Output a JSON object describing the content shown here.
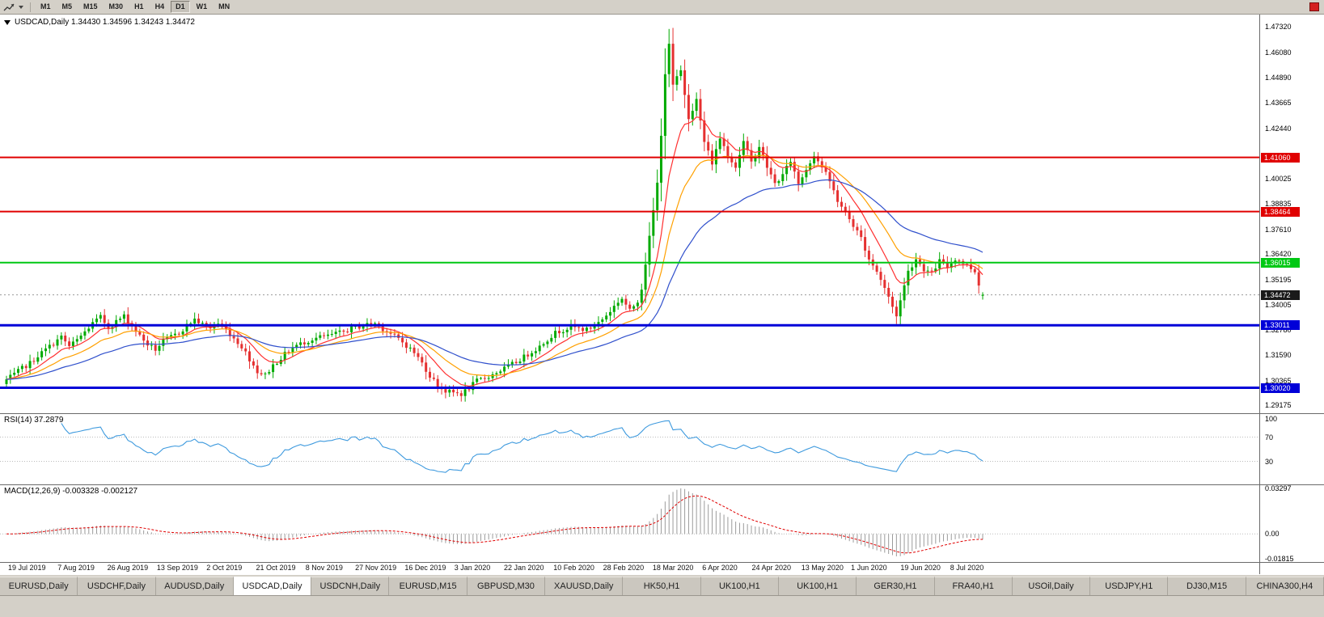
{
  "toolbar": {
    "timeframes": [
      "M1",
      "M5",
      "M15",
      "M30",
      "H1",
      "H4",
      "D1",
      "W1",
      "MN"
    ],
    "active_timeframe": "D1"
  },
  "chart": {
    "title": "USDCAD,Daily 1.34430 1.34596 1.34243 1.34472"
  },
  "chart_data": {
    "type": "candlestick",
    "symbol": "USDCAD",
    "timeframe": "Daily",
    "quote": {
      "open": "1.34430",
      "high": "1.34596",
      "low": "1.34243",
      "close": "1.34472"
    },
    "y_axis_ticks": [
      "1.47320",
      "1.46080",
      "1.44890",
      "1.43665",
      "1.42440",
      "1.40025",
      "1.38835",
      "1.37610",
      "1.36420",
      "1.35195",
      "1.34005",
      "1.32780",
      "1.31590",
      "1.30365",
      "1.29175"
    ],
    "x_tick_labels": [
      "19 Jul 2019",
      "7 Aug 2019",
      "26 Aug 2019",
      "13 Sep 2019",
      "2 Oct 2019",
      "21 Oct 2019",
      "8 Nov 2019",
      "27 Nov 2019",
      "16 Dec 2019",
      "3 Jan 2020",
      "22 Jan 2020",
      "10 Feb 2020",
      "28 Feb 2020",
      "18 Mar 2020",
      "6 Apr 2020",
      "24 Apr 2020",
      "13 May 2020",
      "1 Jun 2020",
      "19 Jun 2020",
      "8 Jul 2020"
    ],
    "price_lines": [
      {
        "label": "1.41060",
        "value": 1.4106,
        "color": "#E00000",
        "width": 2,
        "type": "resistance"
      },
      {
        "label": "1.38464",
        "value": 1.38464,
        "color": "#E00000",
        "width": 2,
        "type": "resistance"
      },
      {
        "label": "1.36015",
        "value": 1.36015,
        "color": "#00C814",
        "width": 2,
        "type": "level"
      },
      {
        "label": "1.33011",
        "value": 1.33011,
        "color": "#0000D8",
        "width": 3,
        "type": "support"
      },
      {
        "label": "1.30020",
        "value": 1.3002,
        "color": "#0000D8",
        "width": 3,
        "type": "support"
      }
    ],
    "current_price": {
      "label": "1.34472",
      "value": 1.34472
    },
    "candle_colors": {
      "up": "#00AA00",
      "down": "#E53030"
    },
    "moving_averages": [
      {
        "period": 10,
        "color": "#FF3030"
      },
      {
        "period": 21,
        "color": "#FFA000"
      },
      {
        "period": 45,
        "color": "#3050CC"
      }
    ],
    "candles_approx": {
      "count": 250,
      "last": [
        1.3443,
        1.34596,
        1.34243,
        1.34472
      ],
      "anchors": [
        [
          0,
          1.304
        ],
        [
          2,
          1.3065
        ],
        [
          4,
          1.3095
        ],
        [
          6,
          1.312
        ],
        [
          8,
          1.3155
        ],
        [
          10,
          1.3185
        ],
        [
          12,
          1.3215
        ],
        [
          14,
          1.3245
        ],
        [
          16,
          1.32
        ],
        [
          18,
          1.323
        ],
        [
          20,
          1.327
        ],
        [
          22,
          1.331
        ],
        [
          24,
          1.334
        ],
        [
          26,
          1.329
        ],
        [
          28,
          1.332
        ],
        [
          30,
          1.3345
        ],
        [
          32,
          1.33
        ],
        [
          34,
          1.325
        ],
        [
          36,
          1.321
        ],
        [
          38,
          1.3185
        ],
        [
          40,
          1.3225
        ],
        [
          42,
          1.3245
        ],
        [
          44,
          1.3265
        ],
        [
          46,
          1.33
        ],
        [
          48,
          1.333
        ],
        [
          50,
          1.3305
        ],
        [
          52,
          1.329
        ],
        [
          54,
          1.331
        ],
        [
          56,
          1.328
        ],
        [
          58,
          1.324
        ],
        [
          60,
          1.32
        ],
        [
          62,
          1.314
        ],
        [
          64,
          1.308
        ],
        [
          66,
          1.3062
        ],
        [
          68,
          1.311
        ],
        [
          70,
          1.3145
        ],
        [
          72,
          1.318
        ],
        [
          74,
          1.3205
        ],
        [
          76,
          1.322
        ],
        [
          78,
          1.3235
        ],
        [
          80,
          1.3245
        ],
        [
          82,
          1.325
        ],
        [
          84,
          1.326
        ],
        [
          86,
          1.327
        ],
        [
          88,
          1.3285
        ],
        [
          90,
          1.3295
        ],
        [
          92,
          1.3305
        ],
        [
          94,
          1.331
        ],
        [
          96,
          1.3285
        ],
        [
          98,
          1.326
        ],
        [
          100,
          1.3235
        ],
        [
          102,
          1.3205
        ],
        [
          104,
          1.317
        ],
        [
          106,
          1.312
        ],
        [
          108,
          1.306
        ],
        [
          110,
          1.3015
        ],
        [
          112,
          1.2985
        ],
        [
          114,
          1.2978
        ],
        [
          116,
          1.2972
        ],
        [
          118,
          1.3
        ],
        [
          120,
          1.3035
        ],
        [
          122,
          1.305
        ],
        [
          124,
          1.3065
        ],
        [
          126,
          1.3085
        ],
        [
          128,
          1.3105
        ],
        [
          130,
          1.3125
        ],
        [
          132,
          1.315
        ],
        [
          134,
          1.3175
        ],
        [
          136,
          1.32
        ],
        [
          138,
          1.3235
        ],
        [
          140,
          1.3265
        ],
        [
          142,
          1.328
        ],
        [
          144,
          1.3295
        ],
        [
          146,
          1.3285
        ],
        [
          148,
          1.328
        ],
        [
          150,
          1.33
        ],
        [
          152,
          1.333
        ],
        [
          154,
          1.337
        ],
        [
          156,
          1.3415
        ],
        [
          157,
          1.343
        ],
        [
          159,
          1.337
        ],
        [
          161,
          1.342
        ],
        [
          162,
          1.348
        ],
        [
          164,
          1.372
        ],
        [
          166,
          1.398
        ],
        [
          167,
          1.422
        ],
        [
          168,
          1.451
        ],
        [
          169,
          1.464
        ],
        [
          170,
          1.445
        ],
        [
          172,
          1.452
        ],
        [
          174,
          1.43
        ],
        [
          176,
          1.438
        ],
        [
          178,
          1.418
        ],
        [
          180,
          1.408
        ],
        [
          182,
          1.42
        ],
        [
          184,
          1.412
        ],
        [
          186,
          1.406
        ],
        [
          188,
          1.418
        ],
        [
          190,
          1.408
        ],
        [
          192,
          1.416
        ],
        [
          194,
          1.406
        ],
        [
          196,
          1.398
        ],
        [
          198,
          1.402
        ],
        [
          200,
          1.409
        ],
        [
          202,
          1.398
        ],
        [
          204,
          1.405
        ],
        [
          206,
          1.412
        ],
        [
          208,
          1.406
        ],
        [
          210,
          1.399
        ],
        [
          212,
          1.39
        ],
        [
          214,
          1.384
        ],
        [
          216,
          1.378
        ],
        [
          218,
          1.372
        ],
        [
          220,
          1.362
        ],
        [
          222,
          1.356
        ],
        [
          224,
          1.348
        ],
        [
          226,
          1.339
        ],
        [
          227,
          1.335
        ],
        [
          228,
          1.342
        ],
        [
          230,
          1.356
        ],
        [
          232,
          1.362
        ],
        [
          234,
          1.357
        ],
        [
          236,
          1.355
        ],
        [
          238,
          1.361
        ],
        [
          240,
          1.358
        ],
        [
          242,
          1.362
        ],
        [
          244,
          1.36
        ],
        [
          246,
          1.3575
        ],
        [
          247,
          1.356
        ],
        [
          248,
          1.35
        ],
        [
          249,
          1.34472
        ]
      ]
    },
    "indicators": {
      "rsi": {
        "label": "RSI(14) 37.2879",
        "period": 14,
        "value": 37.2879,
        "color": "#3E9ADE",
        "levels": [
          70,
          30
        ],
        "axis_ticks": [
          "100",
          "70",
          "30"
        ],
        "axis_values": [
          100,
          70,
          30
        ]
      },
      "macd": {
        "label": "MACD(12,26,9) -0.003328 -0.002127",
        "fast": 12,
        "slow": 26,
        "signal_period": 9,
        "value": -0.003328,
        "signal_value": -0.002127,
        "axis_ticks": [
          "0.03297",
          "0.00",
          "-0.01815"
        ],
        "axis_values": [
          0.03297,
          0,
          -0.01815
        ]
      }
    }
  },
  "tabs": {
    "active_index": 3,
    "items": [
      "EURUSD,Daily",
      "USDCHF,Daily",
      "AUDUSD,Daily",
      "USDCAD,Daily",
      "USDCNH,Daily",
      "EURUSD,M15",
      "GBPUSD,M30",
      "XAUUSD,Daily",
      "HK50,H1",
      "UK100,H1",
      "UK100,H1",
      "GER30,H1",
      "FRA40,H1",
      "USOil,Daily",
      "USDJPY,H1",
      "DJ30,M15",
      "CHINA300,H4"
    ]
  }
}
